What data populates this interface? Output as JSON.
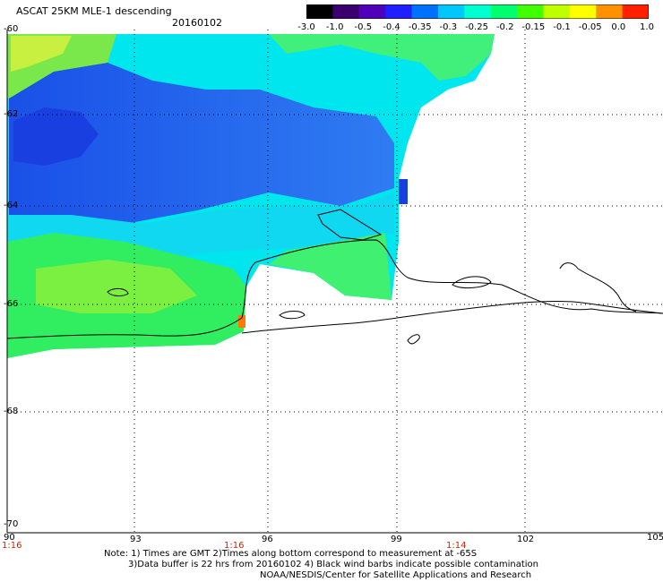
{
  "header": {
    "title": "ASCAT 25KM MLE-1 descending",
    "date": "20160102"
  },
  "colorbar": {
    "labels": [
      "-3.0",
      "-1.0",
      "-0.5",
      "-0.4",
      "-0.35",
      "-0.3",
      "-0.25",
      "-0.2",
      "-0.15",
      "-0.1",
      "-0.05",
      "0.0",
      "1.0"
    ],
    "colors": [
      "#000000",
      "#3a0070",
      "#5000b8",
      "#2020ff",
      "#0070ff",
      "#00c8ff",
      "#00ffd0",
      "#00ff70",
      "#40ff00",
      "#c0ff00",
      "#ffff00",
      "#ff9000",
      "#ff2000"
    ]
  },
  "map": {
    "lat_labels": [
      "-60",
      "-62",
      "-64",
      "-66",
      "-68",
      "-70"
    ],
    "lon_labels": [
      "90",
      "93",
      "96",
      "99",
      "102",
      "105"
    ],
    "time_labels": [
      "1:16",
      "1:16",
      "1:14"
    ],
    "background": "#ffffff",
    "grid_style": "dotted",
    "coastline_color": "#000000"
  },
  "notes": {
    "line1": "Note: 1) Times are GMT 2)Times along bottom correspond to measurement at -65S",
    "line2": "3)Data buffer is 22 hrs from 20160102 4) Black wind barbs indicate possible contamination",
    "line3": "NOAA/NESDIS/Center for Satellite Applications and Research"
  }
}
